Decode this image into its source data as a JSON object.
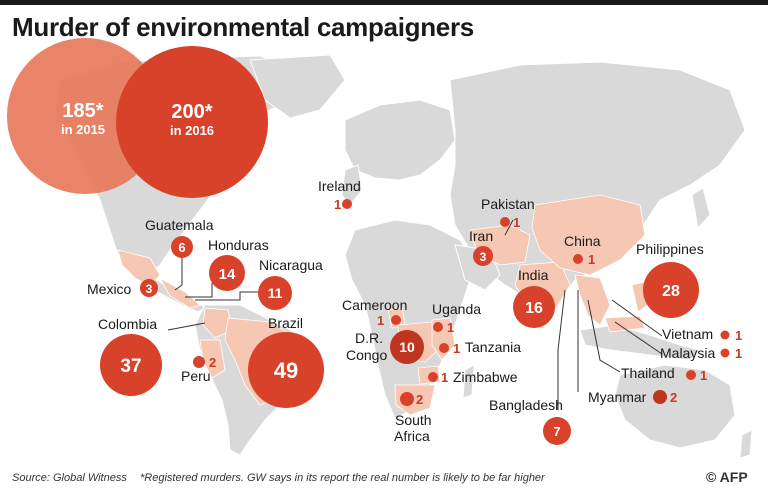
{
  "title": "Murder of environmental campaigners",
  "totals": {
    "y2015": {
      "value": "185*",
      "label": "in 2015"
    },
    "y2016": {
      "value": "200*",
      "label": "in 2016"
    }
  },
  "countries": {
    "ireland": {
      "name": "Ireland",
      "count": "1"
    },
    "pakistan": {
      "name": "Pakistan",
      "count": "1"
    },
    "iran": {
      "name": "Iran",
      "count": "3"
    },
    "china": {
      "name": "China",
      "count": "1"
    },
    "philippines": {
      "name": "Philippines",
      "count": "28"
    },
    "india": {
      "name": "India",
      "count": "16"
    },
    "guatemala": {
      "name": "Guatemala",
      "count": "6"
    },
    "honduras": {
      "name": "Honduras",
      "count": "14"
    },
    "nicaragua": {
      "name": "Nicaragua",
      "count": "11"
    },
    "mexico": {
      "name": "Mexico",
      "count": "3"
    },
    "colombia": {
      "name": "Colombia",
      "count": "37"
    },
    "brazil": {
      "name": "Brazil",
      "count": "49"
    },
    "peru": {
      "name": "Peru",
      "count": "2"
    },
    "cameroon": {
      "name": "Cameroon",
      "count": "1"
    },
    "uganda": {
      "name": "Uganda",
      "count": "1"
    },
    "drcongo": {
      "name_line1": "D.R.",
      "name_line2": "Congo",
      "count": "10"
    },
    "tanzania": {
      "name": "Tanzania",
      "count": "1"
    },
    "zimbabwe": {
      "name": "Zimbabwe",
      "count": "1"
    },
    "southafrica": {
      "name_line1": "South",
      "name_line2": "Africa",
      "count": "2"
    },
    "bangladesh": {
      "name": "Bangladesh",
      "count": "7"
    },
    "myanmar": {
      "name": "Myanmar",
      "count": "2"
    },
    "thailand": {
      "name": "Thailand",
      "count": "1"
    },
    "vietnam": {
      "name": "Vietnam",
      "count": "1"
    },
    "malaysia": {
      "name": "Malaysia",
      "count": "1"
    }
  },
  "footer": {
    "source": "Source: Global Witness",
    "note": "*Registered murders. GW says in its report the real number is likely to be far higher",
    "credit": "© AFP"
  },
  "colors": {
    "circle": "#d8412a",
    "circle_2015": "#e8795c",
    "land": "#d9d9d9",
    "highlight": "#f6c7b3",
    "text": "#1a1a1a"
  }
}
